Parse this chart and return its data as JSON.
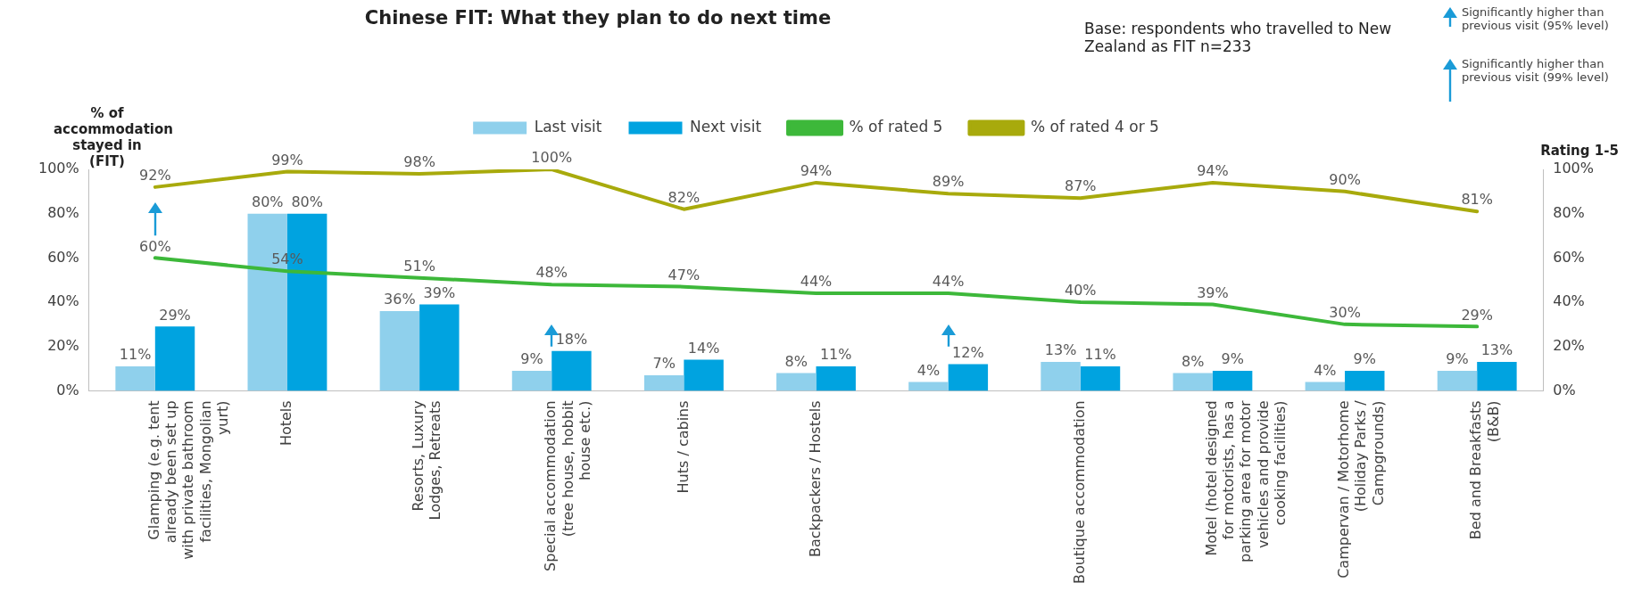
{
  "chart_data": {
    "type": "bar",
    "title": "Chinese FIT: What they plan to do next time",
    "ylabel": "% of accommodation stayed in (FIT)",
    "y2label": "Rating 1-5",
    "annotations": [
      "Base: respondents who travelled to New Zealand as FIT n=233",
      "Significantly higher than previous visit (95% level)",
      "Significantly higher than previous visit (99% level)"
    ],
    "categories": [
      "Glamping (e.g. tent already been set up with private bathroom facilities, Mongolian yurt)",
      "Hotels",
      "Resorts, Luxury Lodges, Retreats",
      "Special accommodation (tree house, hobbit house etc.)",
      "Huts / cabins",
      "Backpackers / Hostels",
      null,
      "Boutique accommodation",
      "Motel (hotel designed for motorists, has a parking area for motor vehicles and provide cooking facilities)",
      "Campervan / Motorhome (Holiday Parks / Campgrounds)",
      "Bed and Breakfasts (B&B)"
    ],
    "series": [
      {
        "name": "Last visit",
        "color": "#8fd0ec",
        "values": [
          11,
          80,
          36,
          9,
          7,
          8,
          4,
          13,
          8,
          4,
          9
        ],
        "value_labels": [
          "11%",
          "80%",
          "36%",
          "9%",
          "7%",
          "8%",
          "4%",
          "13%",
          "8%",
          "4%",
          "9%"
        ]
      },
      {
        "name": "Next visit",
        "color": "#00a3e0",
        "values": [
          29,
          80,
          39,
          18,
          14,
          11,
          12,
          11,
          9,
          9,
          13
        ],
        "value_labels": [
          "29%",
          "80%",
          "39%",
          "18%",
          "14%",
          "11%",
          "12%",
          "11%",
          "9%",
          "9%",
          "13%"
        ]
      },
      {
        "name": "% of rated 5",
        "type": "line",
        "axis": "y2",
        "color": "#3db83a",
        "values": [
          60,
          54,
          51,
          48,
          47,
          44,
          44,
          40,
          39,
          30,
          29
        ],
        "value_labels": [
          "60%",
          "54%",
          "51%",
          "48%",
          "47%",
          "44%",
          "44%",
          "40%",
          "39%",
          "30%",
          "29%"
        ]
      },
      {
        "name": "% of rated 4 or 5",
        "type": "line",
        "axis": "y2",
        "color": "#a8aa0c",
        "values": [
          92,
          99,
          98,
          100,
          82,
          94,
          89,
          87,
          94,
          90,
          81
        ],
        "value_labels": [
          "92%",
          "99%",
          "98%",
          "100%",
          "82%",
          "94%",
          "89%",
          "87%",
          "94%",
          "90%",
          "81%"
        ]
      }
    ],
    "ylim": [
      0,
      100
    ],
    "yticks": [
      {
        "value": 0,
        "label": "0%"
      },
      {
        "value": 20,
        "label": "20%"
      },
      {
        "value": 40,
        "label": "40%"
      },
      {
        "value": 60,
        "label": "60%"
      },
      {
        "value": 80,
        "label": "80%"
      },
      {
        "value": 100,
        "label": "100%"
      }
    ],
    "y2lim": [
      0,
      100
    ],
    "y2ticks": [
      {
        "value": 0,
        "label": "0%"
      },
      {
        "value": 20,
        "label": "20%"
      },
      {
        "value": 40,
        "label": "40%"
      },
      {
        "value": 60,
        "label": "60%"
      },
      {
        "value": 80,
        "label": "80%"
      },
      {
        "value": 100,
        "label": "100%"
      }
    ],
    "grid": false,
    "legend": "top",
    "marker": "none"
  }
}
